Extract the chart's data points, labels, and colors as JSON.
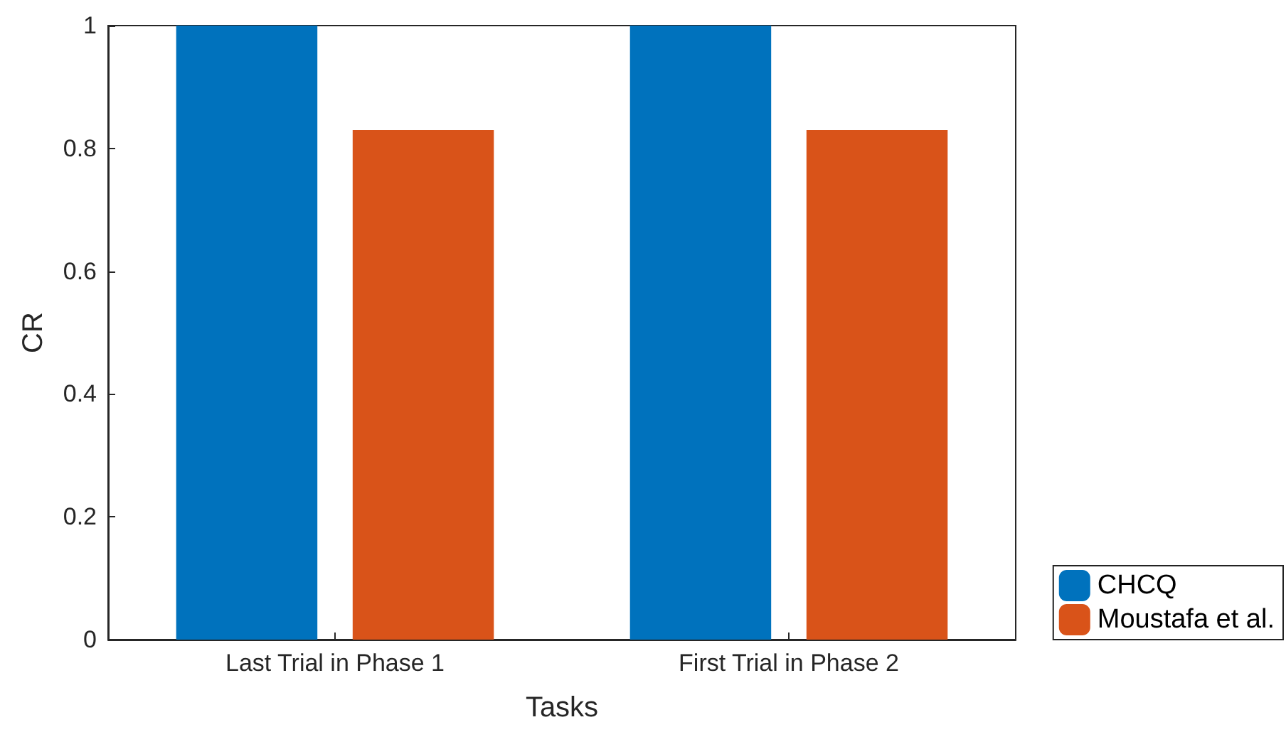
{
  "chart_data": {
    "type": "bar",
    "xlabel": "Tasks",
    "ylabel": "CR",
    "categories": [
      "Last Trial in Phase 1",
      "First Trial in Phase 2"
    ],
    "series": [
      {
        "name": "CHCQ",
        "color": "#0072bd",
        "values": [
          1,
          1
        ]
      },
      {
        "name": "Moustafa et al.",
        "color": "#d95319",
        "values": [
          0.83,
          0.83
        ]
      }
    ],
    "ylim": [
      0,
      1
    ],
    "yticks": [
      0,
      0.2,
      0.4,
      0.6,
      0.8,
      1
    ],
    "grid": false,
    "legend": "bottom right"
  }
}
